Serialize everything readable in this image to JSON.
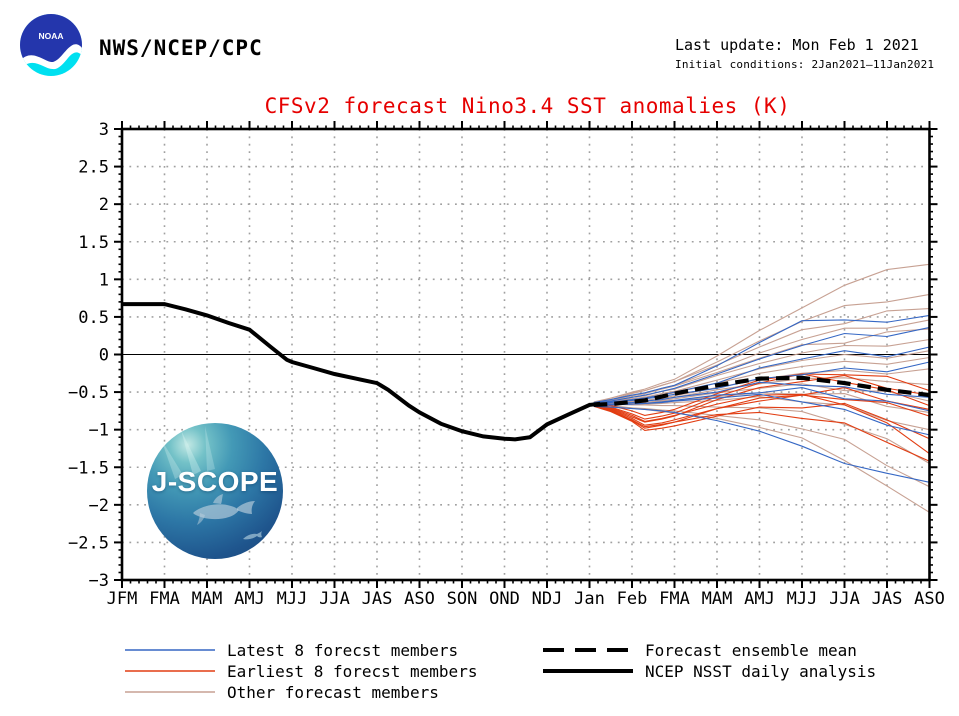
{
  "header": {
    "org": "NWS/NCEP/CPC",
    "last_update": "Last update: Mon Feb 1 2021",
    "initial_conditions": "Initial conditions: 2Jan2021—11Jan2021",
    "noaa_logo_text": "NOAA"
  },
  "jscope_logo": {
    "text": "J-SCOPE"
  },
  "chart_data": {
    "type": "line",
    "title": "CFSv2 forecast Nino3.4 SST anomalies (K)",
    "title_color": "#e60000",
    "x_labels": [
      "JFM",
      "FMA",
      "MAM",
      "AMJ",
      "MJJ",
      "JJA",
      "JAS",
      "ASO",
      "SON",
      "OND",
      "NDJ",
      "Jan",
      "Feb",
      "FMA",
      "MAM",
      "AMJ",
      "MJJ",
      "JJA",
      "JAS",
      "ASO"
    ],
    "ylim": [
      -3,
      3
    ],
    "y_tick_step": 0.5,
    "grid": "dotted",
    "zero_line": true,
    "colors": {
      "latest": "#3567c4",
      "earliest": "#e23d12",
      "other": "#c7a193",
      "mean": "#000000",
      "obs": "#000000",
      "grid": "#a0a0a0"
    },
    "observation": {
      "name": "NCEP NSST daily analysis",
      "x": [
        0,
        1,
        1.5,
        2,
        2.5,
        3,
        3.5,
        3.88,
        4,
        4.5,
        5,
        5.5,
        6,
        6.26,
        6.75,
        7,
        7.5,
        8,
        8.5,
        9,
        9.25,
        9.6,
        10,
        10.5,
        11,
        11.25
      ],
      "values": [
        0.67,
        0.67,
        0.6,
        0.52,
        0.42,
        0.33,
        0.1,
        -0.07,
        -0.1,
        -0.18,
        -0.26,
        -0.32,
        -0.38,
        -0.47,
        -0.68,
        -0.77,
        -0.92,
        -1.02,
        -1.09,
        -1.12,
        -1.13,
        -1.1,
        -0.93,
        -0.8,
        -0.67,
        -0.655
      ],
      "style": "solid-thick"
    },
    "forecast_x": [
      11.1,
      11.5,
      12,
      12.3,
      12.7,
      13,
      14,
      15,
      16,
      17,
      18,
      19
    ],
    "ensemble_mean": {
      "name": "Forecast ensemble mean",
      "values": [
        -0.67,
        -0.66,
        -0.63,
        -0.61,
        -0.56,
        -0.52,
        -0.41,
        -0.32,
        -0.31,
        -0.38,
        -0.47,
        -0.54
      ],
      "style": "dashed-thick"
    },
    "members": {
      "latest": {
        "name": "Latest 8 forecst members",
        "series": [
          [
            -0.64,
            -0.6,
            -0.54,
            -0.51,
            -0.45,
            -0.41,
            -0.15,
            0.16,
            0.45,
            0.46,
            0.43,
            0.52
          ],
          [
            -0.65,
            -0.62,
            -0.57,
            -0.54,
            -0.49,
            -0.45,
            -0.26,
            -0.06,
            0.12,
            0.28,
            0.24,
            0.36
          ],
          [
            -0.66,
            -0.64,
            -0.6,
            -0.58,
            -0.54,
            -0.5,
            -0.38,
            -0.18,
            -0.06,
            0.05,
            -0.03,
            0.1
          ],
          [
            -0.64,
            -0.63,
            -0.61,
            -0.59,
            -0.56,
            -0.53,
            -0.45,
            -0.32,
            -0.27,
            -0.18,
            -0.23,
            -0.1
          ],
          [
            -0.67,
            -0.66,
            -0.64,
            -0.62,
            -0.6,
            -0.57,
            -0.5,
            -0.37,
            -0.41,
            -0.43,
            -0.53,
            -0.57
          ],
          [
            -0.68,
            -0.67,
            -0.66,
            -0.65,
            -0.63,
            -0.61,
            -0.54,
            -0.51,
            -0.44,
            -0.59,
            -0.62,
            -0.75
          ],
          [
            -0.66,
            -0.66,
            -0.66,
            -0.65,
            -0.64,
            -0.62,
            -0.58,
            -0.53,
            -0.63,
            -0.73,
            -0.94,
            -1.07
          ],
          [
            -0.69,
            -0.7,
            -0.72,
            -0.73,
            -0.75,
            -0.77,
            -0.88,
            -1.02,
            -1.22,
            -1.45,
            -1.58,
            -1.7
          ]
        ]
      },
      "earliest": {
        "name": "Earliest 8 forecst members",
        "series": [
          [
            -0.67,
            -0.72,
            -0.83,
            -0.9,
            -0.86,
            -0.82,
            -0.6,
            -0.44,
            -0.36,
            -0.28,
            -0.45,
            -0.54
          ],
          [
            -0.68,
            -0.75,
            -0.88,
            -0.98,
            -0.94,
            -0.9,
            -0.72,
            -0.58,
            -0.54,
            -0.44,
            -0.62,
            -0.73
          ],
          [
            -0.66,
            -0.7,
            -0.79,
            -0.86,
            -0.82,
            -0.78,
            -0.56,
            -0.38,
            -0.26,
            -0.27,
            -0.29,
            -0.48
          ],
          [
            -0.65,
            -0.68,
            -0.75,
            -0.81,
            -0.77,
            -0.73,
            -0.52,
            -0.34,
            -0.26,
            -0.37,
            -0.47,
            -0.68
          ],
          [
            -0.67,
            -0.73,
            -0.85,
            -0.94,
            -0.91,
            -0.87,
            -0.72,
            -0.62,
            -0.54,
            -0.6,
            -0.64,
            -0.82
          ],
          [
            -0.69,
            -0.76,
            -0.89,
            -1.01,
            -0.98,
            -0.95,
            -0.82,
            -0.7,
            -0.71,
            -0.65,
            -0.87,
            -1.12
          ],
          [
            -0.66,
            -0.71,
            -0.81,
            -0.89,
            -0.85,
            -0.81,
            -0.66,
            -0.54,
            -0.53,
            -0.67,
            -0.91,
            -1.32
          ],
          [
            -0.68,
            -0.74,
            -0.87,
            -0.96,
            -0.93,
            -0.9,
            -0.8,
            -0.77,
            -0.85,
            -0.91,
            -1.17,
            -1.42
          ]
        ]
      },
      "other": {
        "name": "Other forecast members",
        "series": [
          [
            -0.64,
            -0.58,
            -0.5,
            -0.46,
            -0.38,
            -0.33,
            -0.02,
            0.32,
            0.62,
            0.92,
            1.13,
            1.2
          ],
          [
            -0.65,
            -0.6,
            -0.52,
            -0.48,
            -0.41,
            -0.36,
            -0.1,
            0.18,
            0.44,
            0.65,
            0.7,
            0.8
          ],
          [
            -0.63,
            -0.58,
            -0.51,
            -0.48,
            -0.41,
            -0.36,
            -0.14,
            0.1,
            0.33,
            0.41,
            0.58,
            0.61
          ],
          [
            -0.66,
            -0.61,
            -0.55,
            -0.52,
            -0.45,
            -0.41,
            -0.2,
            0.02,
            0.2,
            0.35,
            0.35,
            0.46
          ],
          [
            -0.64,
            -0.6,
            -0.55,
            -0.52,
            -0.46,
            -0.42,
            -0.24,
            -0.05,
            0.13,
            0.15,
            0.3,
            0.34
          ],
          [
            -0.65,
            -0.62,
            -0.57,
            -0.55,
            -0.49,
            -0.46,
            -0.28,
            -0.12,
            0.02,
            0.12,
            0.11,
            0.2
          ],
          [
            -0.66,
            -0.63,
            -0.59,
            -0.57,
            -0.52,
            -0.49,
            -0.34,
            -0.19,
            -0.08,
            0.0,
            -0.05,
            0.05
          ],
          [
            -0.64,
            -0.62,
            -0.59,
            -0.57,
            -0.54,
            -0.51,
            -0.38,
            -0.25,
            -0.16,
            -0.09,
            -0.13,
            -0.04
          ],
          [
            -0.67,
            -0.65,
            -0.63,
            -0.61,
            -0.58,
            -0.55,
            -0.44,
            -0.33,
            -0.25,
            -0.21,
            -0.26,
            -0.19
          ],
          [
            -0.65,
            -0.64,
            -0.62,
            -0.61,
            -0.59,
            -0.57,
            -0.47,
            -0.39,
            -0.32,
            -0.31,
            -0.36,
            -0.4
          ],
          [
            -0.68,
            -0.66,
            -0.65,
            -0.64,
            -0.61,
            -0.59,
            -0.51,
            -0.45,
            -0.39,
            -0.48,
            -0.49,
            -0.62
          ],
          [
            -0.66,
            -0.65,
            -0.64,
            -0.64,
            -0.62,
            -0.61,
            -0.56,
            -0.51,
            -0.53,
            -0.52,
            -0.69,
            -0.77
          ],
          [
            -0.67,
            -0.67,
            -0.66,
            -0.66,
            -0.65,
            -0.64,
            -0.61,
            -0.56,
            -0.63,
            -0.67,
            -0.88,
            -1.0
          ],
          [
            -0.65,
            -0.66,
            -0.67,
            -0.67,
            -0.68,
            -0.68,
            -0.7,
            -0.71,
            -0.76,
            -0.93,
            -1.12,
            -1.45
          ],
          [
            -0.68,
            -0.69,
            -0.71,
            -0.72,
            -0.74,
            -0.75,
            -0.81,
            -0.87,
            -0.99,
            -1.13,
            -1.48,
            -1.76
          ],
          [
            -0.66,
            -0.68,
            -0.71,
            -0.73,
            -0.76,
            -0.78,
            -0.85,
            -0.97,
            -1.11,
            -1.41,
            -1.75,
            -2.1
          ]
        ]
      }
    }
  },
  "legend": {
    "left": [
      {
        "key": "latest",
        "style": "solid-thin",
        "label": "Latest 8 forecst members"
      },
      {
        "key": "earliest",
        "style": "solid-thin",
        "label": "Earliest 8 forecst members"
      },
      {
        "key": "other",
        "style": "solid-thin",
        "label": "Other forecast members"
      }
    ],
    "right": [
      {
        "key": "mean",
        "style": "dashed-thick",
        "label": "Forecast ensemble mean"
      },
      {
        "key": "obs",
        "style": "solid-thick",
        "label": "NCEP NSST daily analysis"
      }
    ]
  }
}
